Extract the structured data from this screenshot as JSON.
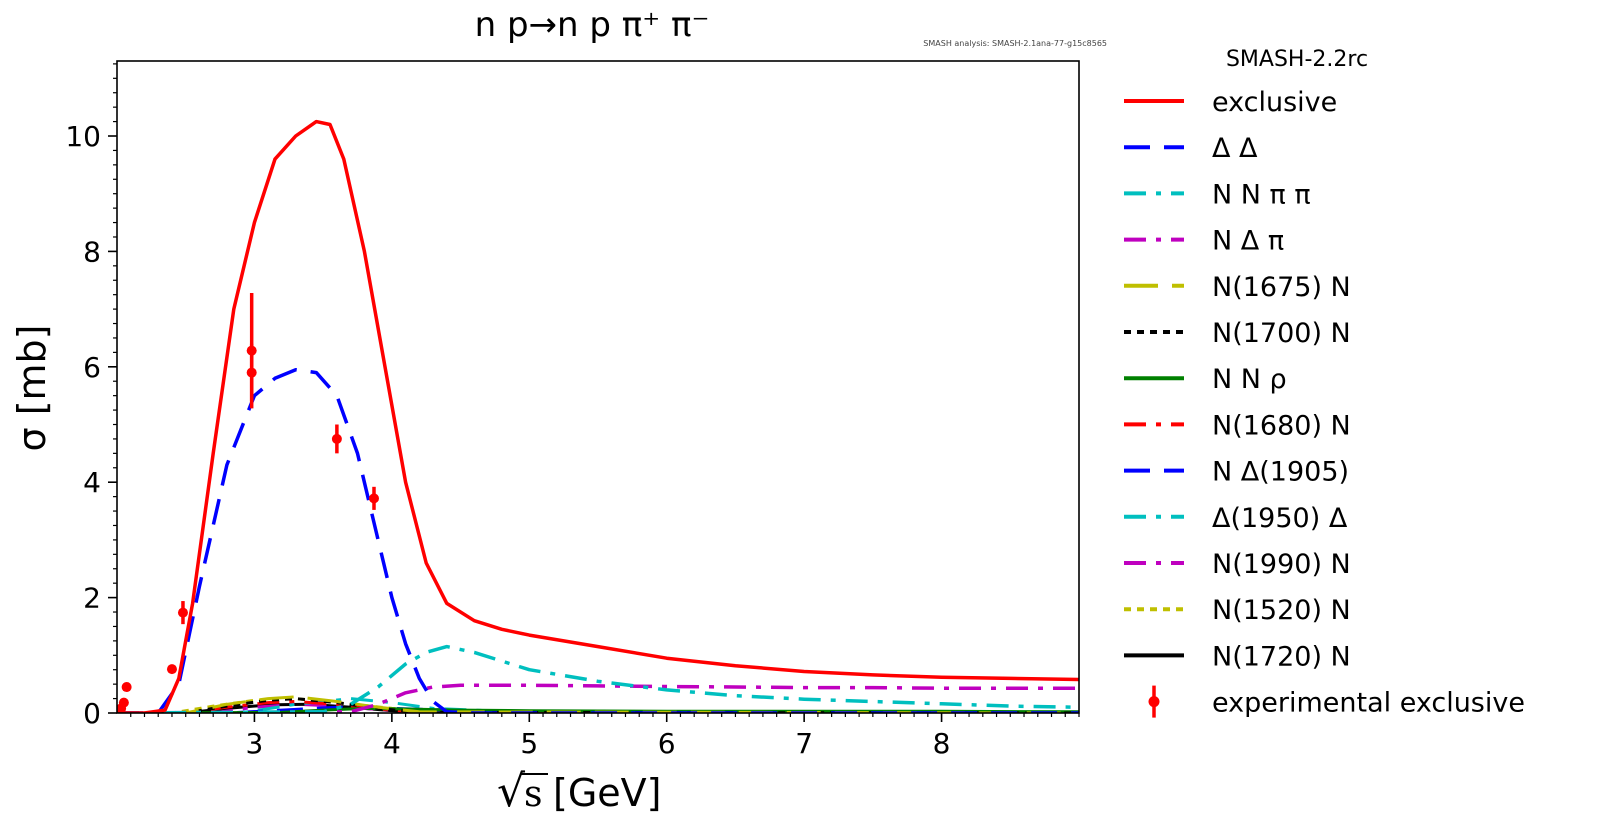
{
  "chart_data": {
    "type": "line",
    "title": "n p→n p π⁺ π⁻",
    "annotation": "SMASH analysis: SMASH-2.1ana-77-g15c8565",
    "xlabel_radical": "√",
    "xlabel_var": "s",
    "xlabel_unit": "[GeV]",
    "ylabel": "σ [mb]",
    "xlim": [
      2.0,
      9.0
    ],
    "ylim": [
      0,
      11.3
    ],
    "xticks": [
      3,
      4,
      5,
      6,
      7,
      8
    ],
    "yticks": [
      0,
      2,
      4,
      6,
      8,
      10
    ],
    "legend_title": "SMASH-2.2rc",
    "legend_placement": "right outside",
    "series": [
      {
        "name": "exclusive",
        "color": "#ff0000",
        "style": "solid",
        "x": [
          2.0,
          2.2,
          2.35,
          2.45,
          2.55,
          2.7,
          2.85,
          3.0,
          3.15,
          3.3,
          3.45,
          3.55,
          3.65,
          3.8,
          3.95,
          4.1,
          4.25,
          4.4,
          4.6,
          4.8,
          5.0,
          5.5,
          6.0,
          6.5,
          7.0,
          7.5,
          8.0,
          8.5,
          9.0
        ],
        "y": [
          0.0,
          0.0,
          0.05,
          0.6,
          1.9,
          4.5,
          7.0,
          8.5,
          9.6,
          10.0,
          10.25,
          10.2,
          9.6,
          8.0,
          6.0,
          4.0,
          2.6,
          1.9,
          1.6,
          1.45,
          1.35,
          1.15,
          0.95,
          0.82,
          0.72,
          0.66,
          0.62,
          0.6,
          0.58
        ]
      },
      {
        "name": "Δ Δ",
        "color": "#0000ff",
        "style": "dash",
        "x": [
          2.0,
          2.3,
          2.45,
          2.6,
          2.8,
          3.0,
          3.15,
          3.3,
          3.45,
          3.6,
          3.75,
          3.9,
          4.0,
          4.1,
          4.2,
          4.3,
          4.4,
          4.6,
          5.0,
          6.0,
          7.0,
          8.0,
          9.0
        ],
        "y": [
          0.0,
          0.0,
          0.5,
          2.2,
          4.3,
          5.5,
          5.8,
          5.95,
          5.9,
          5.5,
          4.5,
          3.0,
          2.0,
          1.2,
          0.6,
          0.2,
          0.02,
          0.0,
          0.0,
          0.0,
          0.0,
          0.0,
          0.0
        ]
      },
      {
        "name": "N N π π",
        "color": "#00bfbf",
        "style": "dashdot",
        "x": [
          2.0,
          3.5,
          3.7,
          3.9,
          4.1,
          4.25,
          4.4,
          4.6,
          4.8,
          5.0,
          5.5,
          6.0,
          6.5,
          7.0,
          7.5,
          8.0,
          8.5,
          9.0
        ],
        "y": [
          0.0,
          0.02,
          0.15,
          0.45,
          0.85,
          1.05,
          1.15,
          1.05,
          0.9,
          0.75,
          0.55,
          0.4,
          0.3,
          0.24,
          0.2,
          0.16,
          0.12,
          0.1
        ]
      },
      {
        "name": "N Δ π",
        "color": "#bf00bf",
        "style": "dashdot",
        "x": [
          2.0,
          3.7,
          3.9,
          4.1,
          4.3,
          4.5,
          4.8,
          5.0,
          5.5,
          6.0,
          6.5,
          7.0,
          7.5,
          8.0,
          8.5,
          9.0
        ],
        "y": [
          0.0,
          0.02,
          0.15,
          0.35,
          0.45,
          0.48,
          0.48,
          0.48,
          0.47,
          0.46,
          0.45,
          0.44,
          0.44,
          0.43,
          0.43,
          0.43
        ]
      },
      {
        "name": "N(1675) N",
        "color": "#bfbf00",
        "style": "longdash",
        "x": [
          2.0,
          2.5,
          2.8,
          3.1,
          3.3,
          3.6,
          3.9,
          4.2,
          9.0
        ],
        "y": [
          0.0,
          0.0,
          0.15,
          0.25,
          0.28,
          0.2,
          0.1,
          0.02,
          0.0
        ]
      },
      {
        "name": "N(1700) N",
        "color": "#000000",
        "style": "dotted",
        "x": [
          2.0,
          2.5,
          2.8,
          3.1,
          3.3,
          3.6,
          3.9,
          4.2,
          9.0
        ],
        "y": [
          0.0,
          0.0,
          0.12,
          0.22,
          0.25,
          0.18,
          0.08,
          0.01,
          0.0
        ]
      },
      {
        "name": "N N ρ",
        "color": "#008000",
        "style": "solid",
        "x": [
          2.0,
          3.2,
          3.5,
          3.8,
          4.1,
          4.5,
          5.0,
          6.0,
          7.0,
          8.0,
          9.0
        ],
        "y": [
          0.0,
          0.01,
          0.05,
          0.08,
          0.07,
          0.05,
          0.04,
          0.03,
          0.03,
          0.03,
          0.02
        ]
      },
      {
        "name": "N(1680) N",
        "color": "#ff0000",
        "style": "dashdot",
        "x": [
          2.0,
          2.5,
          2.8,
          3.1,
          3.3,
          3.6,
          3.9,
          4.2,
          9.0
        ],
        "y": [
          0.0,
          0.0,
          0.1,
          0.18,
          0.2,
          0.15,
          0.07,
          0.01,
          0.0
        ]
      },
      {
        "name": "N Δ(1905)",
        "color": "#0000ff",
        "style": "dash",
        "x": [
          2.0,
          2.8,
          3.2,
          3.6,
          4.0,
          4.4,
          5.0,
          6.0,
          9.0
        ],
        "y": [
          0.0,
          0.0,
          0.05,
          0.1,
          0.08,
          0.05,
          0.02,
          0.0,
          0.0
        ]
      },
      {
        "name": "Δ(1950) Δ",
        "color": "#00bfbf",
        "style": "dashdot",
        "x": [
          2.0,
          2.9,
          3.3,
          3.7,
          4.0,
          4.3,
          5.0,
          9.0
        ],
        "y": [
          0.0,
          0.0,
          0.15,
          0.25,
          0.18,
          0.08,
          0.01,
          0.0
        ]
      },
      {
        "name": "N(1990) N",
        "color": "#bf00bf",
        "style": "dashdot",
        "x": [
          2.0,
          2.7,
          3.0,
          3.3,
          3.6,
          3.9,
          4.3,
          9.0
        ],
        "y": [
          0.0,
          0.0,
          0.1,
          0.15,
          0.12,
          0.06,
          0.01,
          0.0
        ]
      },
      {
        "name": "N(1520) N",
        "color": "#bfbf00",
        "style": "dotted",
        "x": [
          2.0,
          2.4,
          2.7,
          3.0,
          3.3,
          3.6,
          4.0,
          4.4,
          9.0
        ],
        "y": [
          0.0,
          0.0,
          0.12,
          0.22,
          0.25,
          0.18,
          0.08,
          0.01,
          0.0
        ]
      },
      {
        "name": "N(1720) N",
        "color": "#000000",
        "style": "solid",
        "x": [
          2.0,
          2.5,
          2.8,
          3.1,
          3.4,
          3.7,
          4.0,
          4.3,
          9.0
        ],
        "y": [
          0.0,
          0.0,
          0.08,
          0.14,
          0.15,
          0.1,
          0.04,
          0.0,
          0.0
        ]
      }
    ],
    "experimental": {
      "name": "experimental exclusive",
      "color": "#ff0000",
      "points": [
        {
          "x": 2.03,
          "y": 0.08,
          "err": 0.05
        },
        {
          "x": 2.05,
          "y": 0.18,
          "err": 0.05
        },
        {
          "x": 2.07,
          "y": 0.45,
          "err": 0.06
        },
        {
          "x": 2.4,
          "y": 0.76,
          "err": 0.05
        },
        {
          "x": 2.48,
          "y": 1.74,
          "err": 0.2
        },
        {
          "x": 2.98,
          "y": 5.9,
          "err": 0.5
        },
        {
          "x": 2.98,
          "y": 6.28,
          "err": 1.0
        },
        {
          "x": 3.6,
          "y": 4.75,
          "err": 0.25
        },
        {
          "x": 3.87,
          "y": 3.72,
          "err": 0.2
        }
      ]
    }
  }
}
